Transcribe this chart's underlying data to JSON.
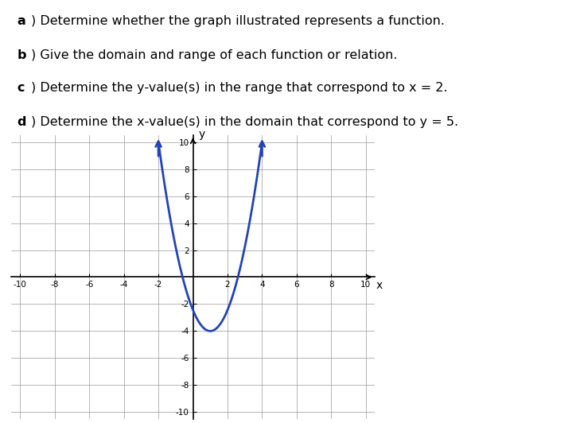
{
  "title_lines": [
    [
      "​a​) Determine whether the graph illustrated represents a function.",
      true
    ],
    [
      "​b​) Give the domain and range of each function or relation.",
      true
    ],
    [
      "​c​) Determine the y-value(s) in the range that correspond to x = 2.",
      true
    ],
    [
      "​d​) Determine the x-value(s) in the domain that correspond to y = 5.",
      true
    ]
  ],
  "xlim": [
    -10.5,
    10.5
  ],
  "ylim": [
    -10.5,
    10.5
  ],
  "xticks": [
    -10,
    -8,
    -6,
    -4,
    -2,
    2,
    4,
    6,
    8,
    10
  ],
  "yticks": [
    -10,
    -8,
    -6,
    -4,
    -2,
    2,
    4,
    6,
    8,
    10
  ],
  "curve_color": "#2244bb",
  "curve_linewidth": 2.0,
  "grid_color": "#999999",
  "background_color": "#ffffff",
  "curve_x_start": -2,
  "curve_x_end": 4,
  "curve_min_x": 1,
  "curve_min_y": -4,
  "arrow_color": "#2244bb",
  "text_bold_parts": [
    "a",
    "b",
    "c",
    "d"
  ]
}
